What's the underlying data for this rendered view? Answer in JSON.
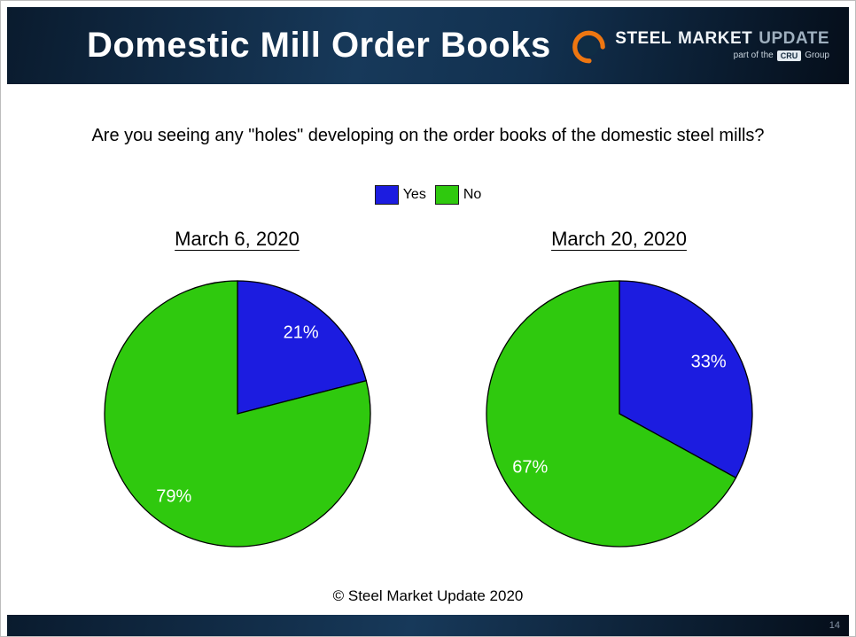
{
  "header": {
    "title": "Domestic Mill Order Books",
    "logo": {
      "word1": "STEEL",
      "word2": "MARKET",
      "word3": "UPDATE",
      "tagline_prefix": "part of the",
      "tagline_badge": "CRU",
      "tagline_suffix": "Group",
      "accent_color": "#ee7611"
    }
  },
  "question": "Are you seeing any \"holes\" developing on the order books of the domestic steel mills?",
  "legend": {
    "items": [
      {
        "label": "Yes",
        "color": "#1c1ce0"
      },
      {
        "label": "No",
        "color": "#2fc90e"
      }
    ]
  },
  "chart_data": [
    {
      "type": "pie",
      "title": "March 6, 2020",
      "labels": [
        "Yes",
        "No"
      ],
      "values": [
        21,
        79
      ],
      "colors": [
        "#1c1ce0",
        "#2fc90e"
      ],
      "data_label_format": "percent",
      "data_label_color": "#ffffff",
      "start_angle_deg": 0,
      "direction": "clockwise",
      "outline_color": "#000000"
    },
    {
      "type": "pie",
      "title": "March 20, 2020",
      "labels": [
        "Yes",
        "No"
      ],
      "values": [
        33,
        67
      ],
      "colors": [
        "#1c1ce0",
        "#2fc90e"
      ],
      "data_label_format": "percent",
      "data_label_color": "#ffffff",
      "start_angle_deg": 0,
      "direction": "clockwise",
      "outline_color": "#000000"
    }
  ],
  "footer": {
    "copyright": "© Steel Market Update 2020",
    "page_number": "14"
  }
}
